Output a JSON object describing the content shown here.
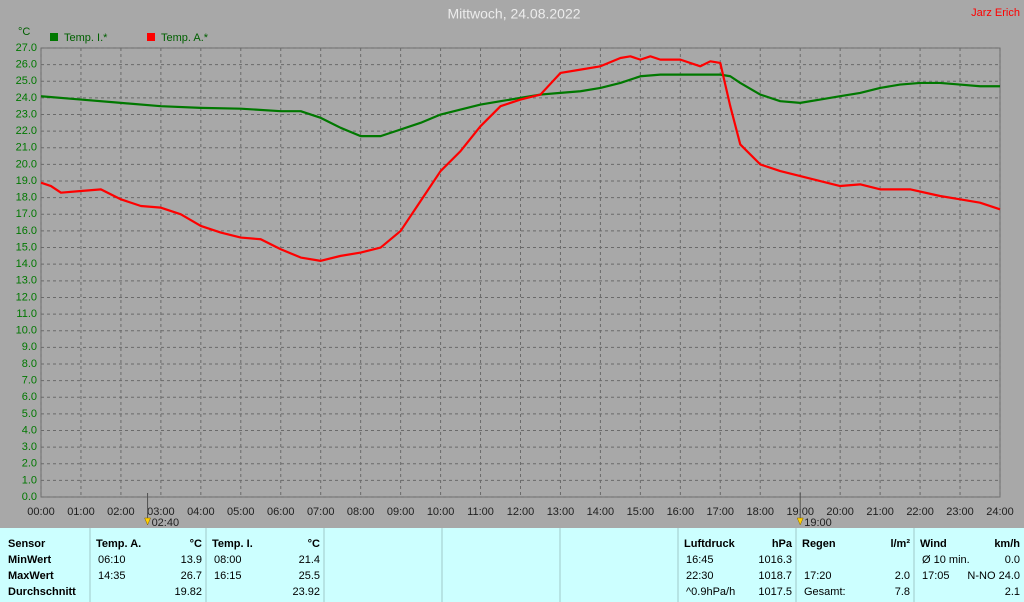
{
  "chart_data": {
    "type": "line",
    "title": "Mittwoch, 24.08.2022",
    "author": "Jarz Erich",
    "ylabel": "°C",
    "xlim": [
      0,
      24
    ],
    "ylim": [
      0,
      27
    ],
    "grid": true,
    "legend": "top-left",
    "xticks": [
      {
        "value": 0,
        "label": "00:00"
      },
      {
        "value": 1,
        "label": "01:00"
      },
      {
        "value": 2,
        "label": "02:00"
      },
      {
        "value": 3,
        "label": "03:00"
      },
      {
        "value": 4,
        "label": "04:00"
      },
      {
        "value": 5,
        "label": "05:00"
      },
      {
        "value": 6,
        "label": "06:00"
      },
      {
        "value": 7,
        "label": "07:00"
      },
      {
        "value": 8,
        "label": "08:00"
      },
      {
        "value": 9,
        "label": "09:00"
      },
      {
        "value": 10,
        "label": "10:00"
      },
      {
        "value": 11,
        "label": "11:00"
      },
      {
        "value": 12,
        "label": "12:00"
      },
      {
        "value": 13,
        "label": "13:00"
      },
      {
        "value": 14,
        "label": "14:00"
      },
      {
        "value": 15,
        "label": "15:00"
      },
      {
        "value": 16,
        "label": "16:00"
      },
      {
        "value": 17,
        "label": "17:00"
      },
      {
        "value": 18,
        "label": "18:00"
      },
      {
        "value": 19,
        "label": "19:00"
      },
      {
        "value": 20,
        "label": "20:00"
      },
      {
        "value": 21,
        "label": "21:00"
      },
      {
        "value": 22,
        "label": "22:00"
      },
      {
        "value": 23,
        "label": "23:00"
      },
      {
        "value": 24,
        "label": "24:00"
      }
    ],
    "yticks": [
      {
        "value": 0,
        "label": "0.0"
      },
      {
        "value": 1,
        "label": "1.0"
      },
      {
        "value": 2,
        "label": "2.0"
      },
      {
        "value": 3,
        "label": "3.0"
      },
      {
        "value": 4,
        "label": "4.0"
      },
      {
        "value": 5,
        "label": "5.0"
      },
      {
        "value": 6,
        "label": "6.0"
      },
      {
        "value": 7,
        "label": "7.0"
      },
      {
        "value": 8,
        "label": "8.0"
      },
      {
        "value": 9,
        "label": "9.0"
      },
      {
        "value": 10,
        "label": "10.0"
      },
      {
        "value": 11,
        "label": "11.0"
      },
      {
        "value": 12,
        "label": "12.0"
      },
      {
        "value": 13,
        "label": "13.0"
      },
      {
        "value": 14,
        "label": "14.0"
      },
      {
        "value": 15,
        "label": "15.0"
      },
      {
        "value": 16,
        "label": "16.0"
      },
      {
        "value": 17,
        "label": "17.0"
      },
      {
        "value": 18,
        "label": "18.0"
      },
      {
        "value": 19,
        "label": "19.0"
      },
      {
        "value": 20,
        "label": "20.0"
      },
      {
        "value": 21,
        "label": "21.0"
      },
      {
        "value": 22,
        "label": "22.0"
      },
      {
        "value": 23,
        "label": "23.0"
      },
      {
        "value": 24,
        "label": "24.0"
      },
      {
        "value": 25,
        "label": "25.0"
      },
      {
        "value": 26,
        "label": "26.0"
      },
      {
        "value": 27,
        "label": "27.0"
      }
    ],
    "markers": [
      {
        "value": 2.667,
        "label": "02:40"
      },
      {
        "value": 19,
        "label": "19:00"
      }
    ],
    "series": [
      {
        "name": "Temp. I.*",
        "color": "#007800",
        "x": [
          0,
          1,
          2,
          3,
          4,
          5,
          6,
          6.5,
          7,
          7.5,
          8,
          8.5,
          9,
          9.5,
          10,
          10.5,
          11,
          11.5,
          12,
          12.5,
          13,
          13.5,
          14,
          14.5,
          15,
          15.5,
          16,
          16.5,
          17,
          17.25,
          17.5,
          18,
          18.5,
          19,
          19.5,
          20,
          20.5,
          21,
          21.5,
          22,
          22.5,
          23,
          23.5,
          24
        ],
        "values": [
          24.1,
          23.9,
          23.7,
          23.5,
          23.4,
          23.35,
          23.2,
          23.2,
          22.8,
          22.2,
          21.7,
          21.7,
          22.1,
          22.5,
          23.0,
          23.3,
          23.6,
          23.8,
          24.0,
          24.2,
          24.3,
          24.4,
          24.6,
          24.9,
          25.3,
          25.4,
          25.4,
          25.4,
          25.4,
          25.3,
          24.9,
          24.2,
          23.8,
          23.7,
          23.9,
          24.1,
          24.3,
          24.6,
          24.8,
          24.9,
          24.9,
          24.8,
          24.7,
          24.7
        ]
      },
      {
        "name": "Temp. A.*",
        "color": "#ff0000",
        "x": [
          0,
          0.25,
          0.5,
          1,
          1.5,
          2,
          2.5,
          3,
          3.5,
          4,
          4.5,
          5,
          5.5,
          6,
          6.5,
          7,
          7.5,
          8,
          8.5,
          9,
          9.5,
          10,
          10.5,
          11,
          11.5,
          12,
          12.5,
          13,
          13.5,
          14,
          14.5,
          14.75,
          15,
          15.25,
          15.5,
          16,
          16.5,
          16.75,
          17,
          17.25,
          17.5,
          18,
          18.5,
          19,
          19.5,
          20,
          20.5,
          21,
          21.75,
          22.5,
          23,
          23.5,
          24
        ],
        "values": [
          18.9,
          18.7,
          18.3,
          18.4,
          18.5,
          17.9,
          17.5,
          17.4,
          17.0,
          16.3,
          15.9,
          15.6,
          15.5,
          14.9,
          14.4,
          14.2,
          14.5,
          14.7,
          15.0,
          16.0,
          17.8,
          19.6,
          20.8,
          22.3,
          23.5,
          23.9,
          24.2,
          25.5,
          25.7,
          25.9,
          26.4,
          26.5,
          26.3,
          26.5,
          26.3,
          26.3,
          25.9,
          26.2,
          26.1,
          23.5,
          21.2,
          20.0,
          19.6,
          19.3,
          19.0,
          18.7,
          18.8,
          18.5,
          18.5,
          18.1,
          17.9,
          17.7,
          17.3
        ]
      }
    ]
  },
  "table": {
    "row_labels": [
      "Sensor",
      "MinWert",
      "MaxWert",
      "Durchschnitt"
    ],
    "groups": [
      {
        "name": "Temp. A.",
        "unit": "°C",
        "rows": [
          [
            "06:10",
            "13.9"
          ],
          [
            "14:35",
            "26.7"
          ],
          [
            null,
            "19.82"
          ]
        ]
      },
      {
        "name": "Temp. I.",
        "unit": "°C",
        "rows": [
          [
            "08:00",
            "21.4"
          ],
          [
            "16:15",
            "25.5"
          ],
          [
            null,
            "23.92"
          ]
        ]
      },
      {
        "name": "Luftdruck",
        "unit": "hPa",
        "rows": [
          [
            "16:45",
            "1016.3"
          ],
          [
            "22:30",
            "1018.7"
          ],
          [
            "^0.9hPa/h",
            "1017.5"
          ]
        ]
      },
      {
        "name": "Regen",
        "unit": "l/m²",
        "rows": [
          [
            null,
            null
          ],
          [
            "17:20",
            "2.0"
          ],
          [
            "Gesamt:",
            "7.8"
          ]
        ]
      },
      {
        "name": "Wind",
        "unit": "km/h",
        "rows": [
          [
            "Ø 10 min.",
            "0.0"
          ],
          [
            "17:05",
            "N-NO 24.0"
          ],
          [
            null,
            "2.1"
          ]
        ]
      }
    ]
  }
}
